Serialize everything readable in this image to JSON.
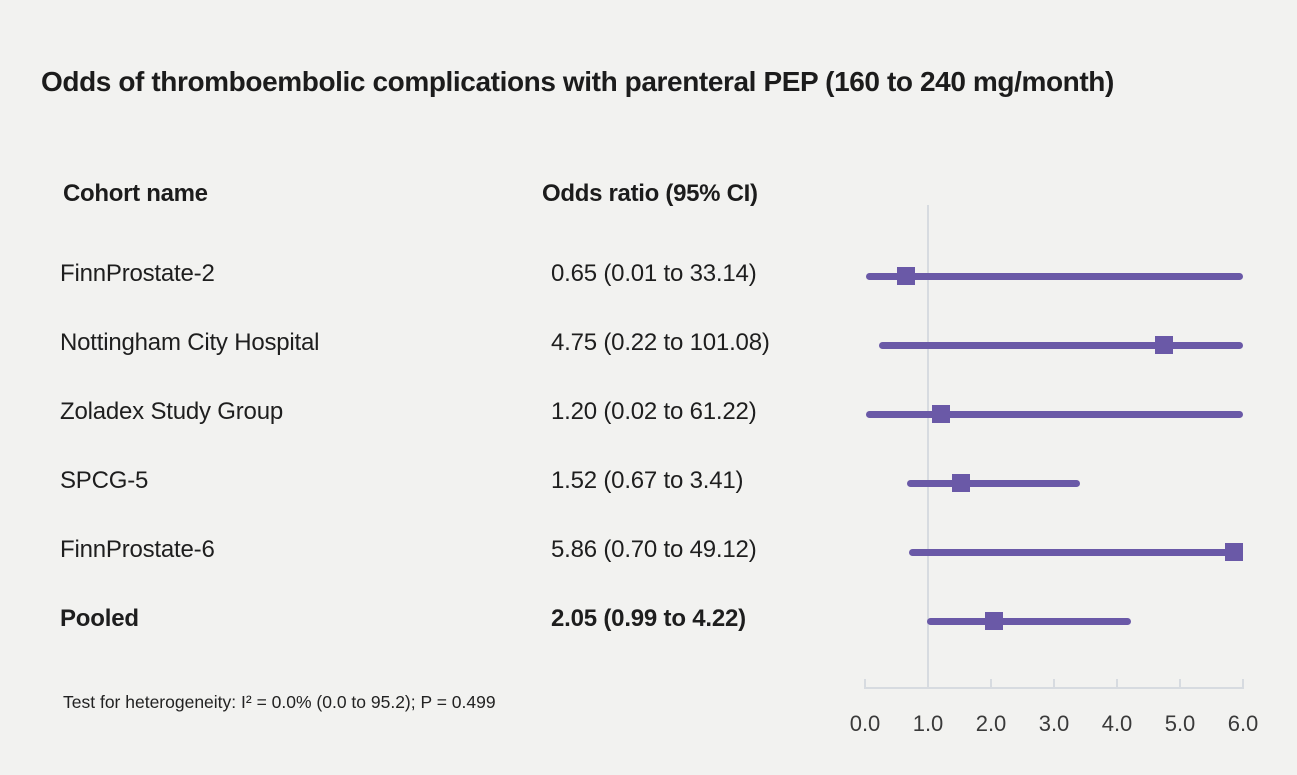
{
  "table": {
    "cohort_header": "Cohort name",
    "or_header": "Odds ratio (95% CI)"
  },
  "chart_data": {
    "type": "scatter",
    "variant": "forest-plot",
    "title": "Odds of thromboembolic complications with parenteral PEP (160 to 240 mg/month)",
    "xlabel": "",
    "ylabel": "",
    "xlim": [
      0.0,
      6.0
    ],
    "x_ticks": [
      0,
      1,
      2,
      3,
      4,
      5,
      6
    ],
    "x_tick_labels": [
      "0.0",
      "1.0",
      "2.0",
      "3.0",
      "4.0",
      "5.0",
      "6.0"
    ],
    "reference_line_x": 1.0,
    "clip_low": 0.0,
    "clip_high": 6.0,
    "grid": false,
    "rows": [
      {
        "label": "FinnProstate-2",
        "or": 0.65,
        "ci_low": 0.01,
        "ci_high": 33.14,
        "display": "0.65 (0.01 to 33.14)",
        "bold": false
      },
      {
        "label": "Nottingham City Hospital",
        "or": 4.75,
        "ci_low": 0.22,
        "ci_high": 101.08,
        "display": "4.75 (0.22 to 101.08)",
        "bold": false
      },
      {
        "label": "Zoladex Study Group",
        "or": 1.2,
        "ci_low": 0.02,
        "ci_high": 61.22,
        "display": "1.20 (0.02 to 61.22)",
        "bold": false
      },
      {
        "label": "SPCG-5",
        "or": 1.52,
        "ci_low": 0.67,
        "ci_high": 3.41,
        "display": "1.52 (0.67 to 3.41)",
        "bold": false
      },
      {
        "label": "FinnProstate-6",
        "or": 5.86,
        "ci_low": 0.7,
        "ci_high": 49.12,
        "display": "5.86 (0.70 to 49.12)",
        "bold": false
      },
      {
        "label": "Pooled",
        "or": 2.05,
        "ci_low": 0.99,
        "ci_high": 4.22,
        "display": "2.05 (0.99 to 4.22)",
        "bold": true
      }
    ],
    "annotation": "Test for heterogeneity: I² = 0.0% (0.0 to 95.2); P = 0.499"
  },
  "palette": {
    "background": "#f2f2f0",
    "text": "#1e1e1e",
    "marker_purple": "#6a59a7",
    "axis_gray": "#d7dbe0",
    "tick_text": "#3a3a3a"
  }
}
